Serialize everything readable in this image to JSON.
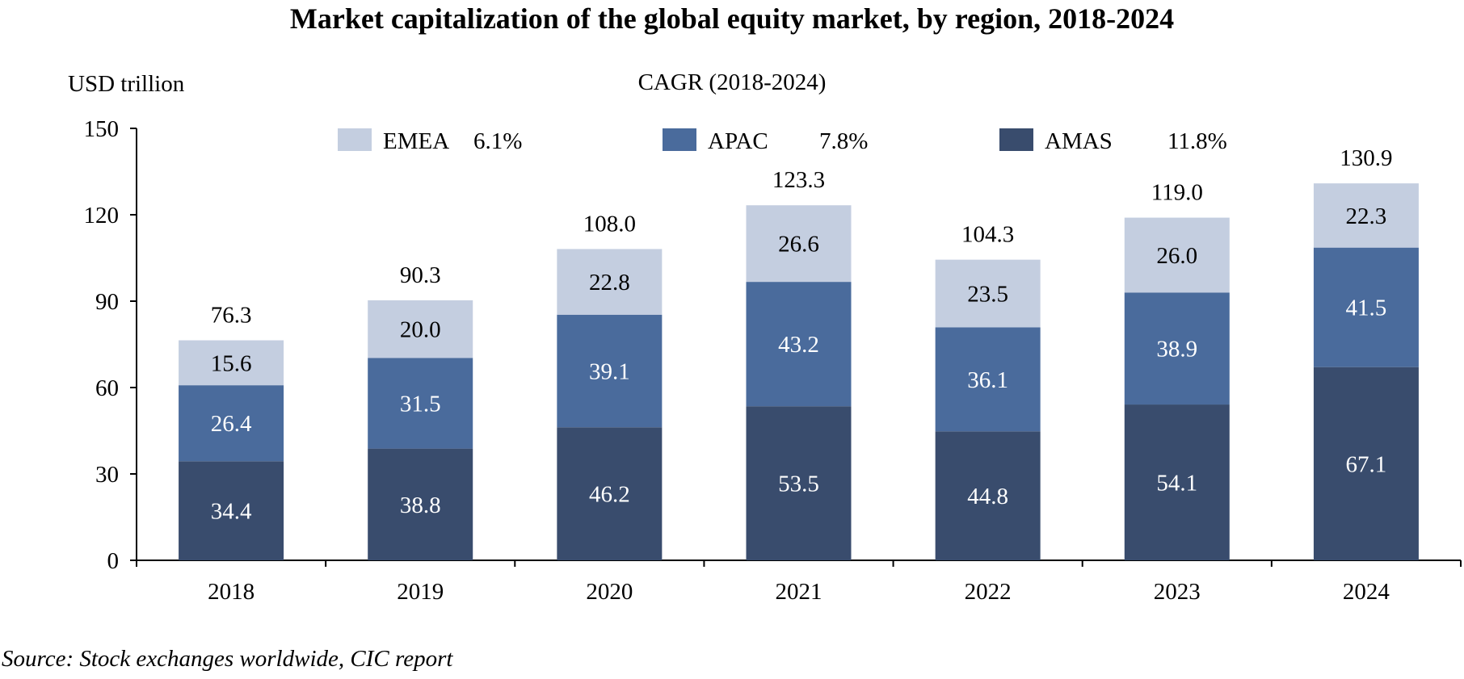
{
  "chart_data": {
    "type": "bar",
    "stacked": true,
    "title": "Market capitalization of the global equity market, by region, 2018-2024",
    "ylabel": "USD trillion",
    "legend_title": "CAGR (2018-2024)",
    "legend_position": "top-center",
    "ylim": [
      0,
      150
    ],
    "yticks": [
      0,
      30,
      60,
      90,
      120,
      150
    ],
    "grid": false,
    "categories": [
      "2018",
      "2019",
      "2020",
      "2021",
      "2022",
      "2023",
      "2024"
    ],
    "totals": [
      "76.3",
      "90.3",
      "108.0",
      "123.3",
      "104.3",
      "119.0",
      "130.9"
    ],
    "series": [
      {
        "name": "AMAS",
        "cagr": "11.8%",
        "color": "#394c6d",
        "values": [
          34.4,
          38.8,
          46.2,
          53.5,
          44.8,
          54.1,
          67.1
        ]
      },
      {
        "name": "APAC",
        "cagr": "7.8%",
        "color": "#4a6b9c",
        "values": [
          26.4,
          31.5,
          39.1,
          43.2,
          36.1,
          38.9,
          41.5
        ]
      },
      {
        "name": "EMEA",
        "cagr": "6.1%",
        "color": "#c4cee0",
        "values": [
          15.6,
          20.0,
          22.8,
          26.6,
          23.5,
          26.0,
          22.3
        ]
      }
    ],
    "legend_order": [
      "EMEA",
      "APAC",
      "AMAS"
    ]
  },
  "source": "Source: Stock exchanges worldwide, CIC report"
}
